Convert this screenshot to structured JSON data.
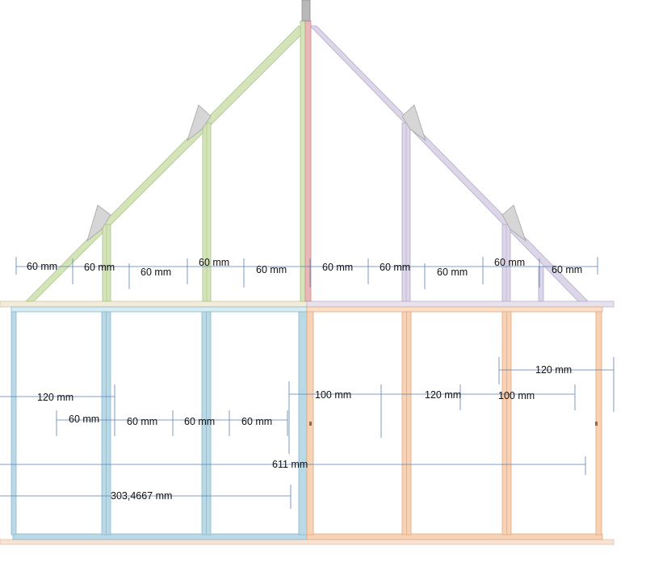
{
  "colors": {
    "green_rafter": "#d4e4b8",
    "green_edge": "#a9c48a",
    "purple_rafter": "#dcd6e8",
    "purple_edge": "#b3aacb",
    "ridge_red": "#e8b7b7",
    "ridge_edge": "#c98f8f",
    "blue_wall": "#b9d9e6",
    "blue_edge": "#8bbacf",
    "orange_wall": "#f7d2b4",
    "orange_edge": "#e0aa82",
    "sill": "#f8e2d4",
    "top_plate_left": "#f2ebd8",
    "top_plate_right": "#e7e1ee",
    "cap_gray": "#d4d4d4",
    "dim_blue": "#5b7fb3"
  },
  "dimensions": {
    "roof_row": [
      "60 mm",
      "60 mm",
      "60 mm",
      "60 mm",
      "60 mm",
      "60 mm",
      "60 mm",
      "60 mm",
      "60 mm",
      "60 mm"
    ],
    "left_120": "120 mm",
    "left_60_row": [
      "60 mm",
      "60 mm",
      "60 mm",
      "60 mm"
    ],
    "right_100": "100 mm",
    "right_120": "120 mm",
    "right_100b": "100 mm",
    "right_120_top": "120 mm",
    "total_611": "611 mm",
    "total_303": "303,4667 mm"
  }
}
